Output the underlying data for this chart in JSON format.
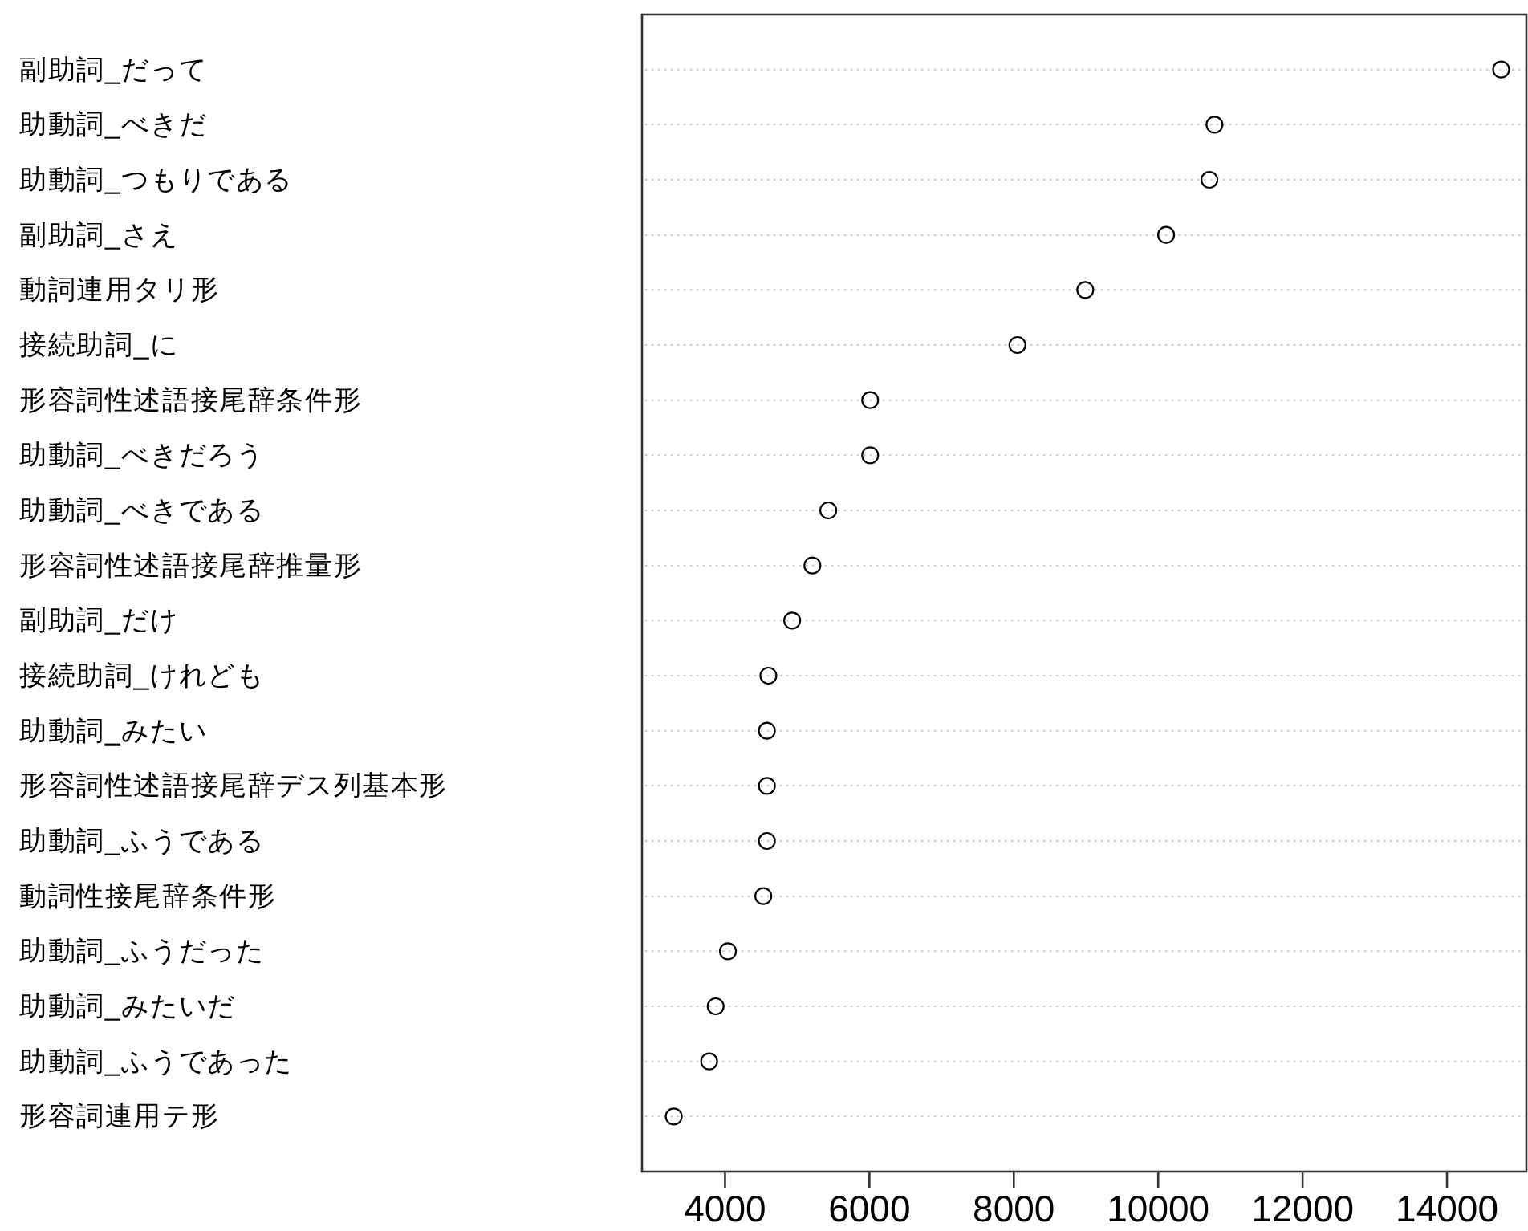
{
  "chart_data": {
    "type": "scatter",
    "orientation": "horizontal",
    "categories": [
      "副助詞_だって",
      "助動詞_べきだ",
      "助動詞_つもりである",
      "副助詞_さえ",
      "動詞連用タリ形",
      "接続助詞_に",
      "形容詞性述語接尾辞条件形",
      "助動詞_べきだろう",
      "助動詞_べきである",
      "形容詞性述語接尾辞推量形",
      "副助詞_だけ",
      "接続助詞_けれども",
      "助動詞_みたい",
      "形容詞性述語接尾辞デス列基本形",
      "助動詞_ふうである",
      "動詞性接尾辞条件形",
      "助動詞_ふうだった",
      "助動詞_みたいだ",
      "助動詞_ふうであった",
      "形容詞連用テ形"
    ],
    "values": [
      14750,
      10780,
      10710,
      10110,
      8990,
      8050,
      6010,
      6010,
      5430,
      5210,
      4930,
      4600,
      4580,
      4580,
      4580,
      4530,
      4040,
      3870,
      3780,
      3290
    ],
    "color": "#000000",
    "marker": "circle",
    "grid": "y",
    "xlim": [
      2850,
      15100
    ],
    "xticks": [
      4000,
      6000,
      8000,
      10000,
      12000,
      14000
    ]
  }
}
